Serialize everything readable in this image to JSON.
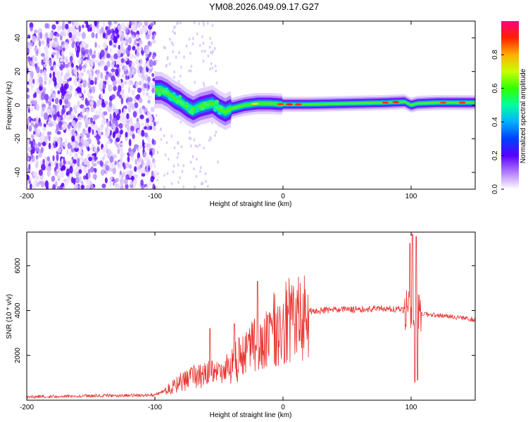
{
  "title": "YM08.2026.049.09.17.G27",
  "colors": {
    "snr_line": "#e8302c",
    "frame": "#000000",
    "background": "#ffffff"
  },
  "chart_data": [
    {
      "type": "heatmap",
      "name": "spectrogram",
      "xlabel": "Height of straight line (km)",
      "ylabel": "Frequency (Hz)",
      "xlim": [
        -200,
        150
      ],
      "ylim": [
        -50,
        50
      ],
      "x_ticks": [
        {
          "value": -200,
          "label": "-200"
        },
        {
          "value": -100,
          "label": "-100"
        },
        {
          "value": 0,
          "label": "0"
        },
        {
          "value": 100,
          "label": "100"
        }
      ],
      "y_ticks": [
        {
          "value": -40,
          "label": "-40"
        },
        {
          "value": -20,
          "label": "-20"
        },
        {
          "value": 0,
          "label": "0"
        },
        {
          "value": 20,
          "label": "20"
        },
        {
          "value": 40,
          "label": "40"
        }
      ],
      "noise_region": [
        -200,
        -100
      ],
      "ridge": [
        {
          "x": -100,
          "f": 9
        },
        {
          "x": -95,
          "f": 9
        },
        {
          "x": -90,
          "f": 7
        },
        {
          "x": -85,
          "f": 4
        },
        {
          "x": -80,
          "f": 2
        },
        {
          "x": -75,
          "f": -1
        },
        {
          "x": -70,
          "f": -3
        },
        {
          "x": -65,
          "f": -1
        },
        {
          "x": -60,
          "f": 0
        },
        {
          "x": -55,
          "f": 1
        },
        {
          "x": -50,
          "f": -2
        },
        {
          "x": -45,
          "f": -4
        },
        {
          "x": -40,
          "f": -2
        },
        {
          "x": -35,
          "f": -1
        },
        {
          "x": -30,
          "f": 0
        },
        {
          "x": -20,
          "f": 1
        },
        {
          "x": -10,
          "f": 1
        },
        {
          "x": 0,
          "f": 0.5
        },
        {
          "x": 20,
          "f": 0.5
        },
        {
          "x": 50,
          "f": 1
        },
        {
          "x": 80,
          "f": 1.5
        },
        {
          "x": 95,
          "f": 2
        },
        {
          "x": 100,
          "f": 0
        },
        {
          "x": 105,
          "f": 1
        },
        {
          "x": 120,
          "f": 1.5
        },
        {
          "x": 150,
          "f": 1.5
        }
      ],
      "colorbar": {
        "label": "Normalized spectral amplitude",
        "range": [
          0,
          1
        ],
        "ticks": [
          {
            "value": 0.0,
            "label": "0.0"
          },
          {
            "value": 0.2,
            "label": "0.2"
          },
          {
            "value": 0.4,
            "label": "0.4"
          },
          {
            "value": 0.6,
            "label": "0.6"
          },
          {
            "value": 0.8,
            "label": "0.8"
          }
        ]
      }
    },
    {
      "type": "line",
      "name": "snr",
      "xlabel": "Height of straight line (km)",
      "ylabel": "SNR (10 * v/v)",
      "xlim": [
        -200,
        150
      ],
      "ylim": [
        0,
        7500
      ],
      "x_ticks": [
        {
          "value": -200,
          "label": "-200"
        },
        {
          "value": -100,
          "label": "-100"
        },
        {
          "value": 0,
          "label": "0"
        },
        {
          "value": 100,
          "label": "100"
        }
      ],
      "y_ticks": [
        {
          "value": 2000,
          "label": "2000"
        },
        {
          "value": 4000,
          "label": "4000"
        },
        {
          "value": 6000,
          "label": "6000"
        }
      ],
      "envelope": [
        {
          "x": -200,
          "y": 150
        },
        {
          "x": -150,
          "y": 200
        },
        {
          "x": -100,
          "y": 220
        },
        {
          "x": -90,
          "y": 500
        },
        {
          "x": -80,
          "y": 800
        },
        {
          "x": -70,
          "y": 1000
        },
        {
          "x": -60,
          "y": 1100
        },
        {
          "x": -50,
          "y": 1300
        },
        {
          "x": -40,
          "y": 1600
        },
        {
          "x": -30,
          "y": 2000
        },
        {
          "x": -20,
          "y": 2500
        },
        {
          "x": -10,
          "y": 3000
        },
        {
          "x": 0,
          "y": 3400
        },
        {
          "x": 10,
          "y": 3700
        },
        {
          "x": 20,
          "y": 3950
        },
        {
          "x": 40,
          "y": 4050
        },
        {
          "x": 60,
          "y": 4050
        },
        {
          "x": 80,
          "y": 4100
        },
        {
          "x": 90,
          "y": 4050
        },
        {
          "x": 100,
          "y": 4000
        },
        {
          "x": 110,
          "y": 3850
        },
        {
          "x": 130,
          "y": 3750
        },
        {
          "x": 150,
          "y": 3600
        }
      ],
      "spikes": [
        {
          "x": -57,
          "y": 3200
        },
        {
          "x": -38,
          "y": 3400
        },
        {
          "x": -20,
          "y": 5300
        },
        {
          "x": -12,
          "y": 3800
        },
        {
          "x": 99,
          "y": 7000
        },
        {
          "x": 101,
          "y": 7400
        },
        {
          "x": 104,
          "y": 7300
        }
      ],
      "dips": [
        {
          "x": 103,
          "y": 800
        },
        {
          "x": 105,
          "y": 900
        }
      ]
    }
  ]
}
